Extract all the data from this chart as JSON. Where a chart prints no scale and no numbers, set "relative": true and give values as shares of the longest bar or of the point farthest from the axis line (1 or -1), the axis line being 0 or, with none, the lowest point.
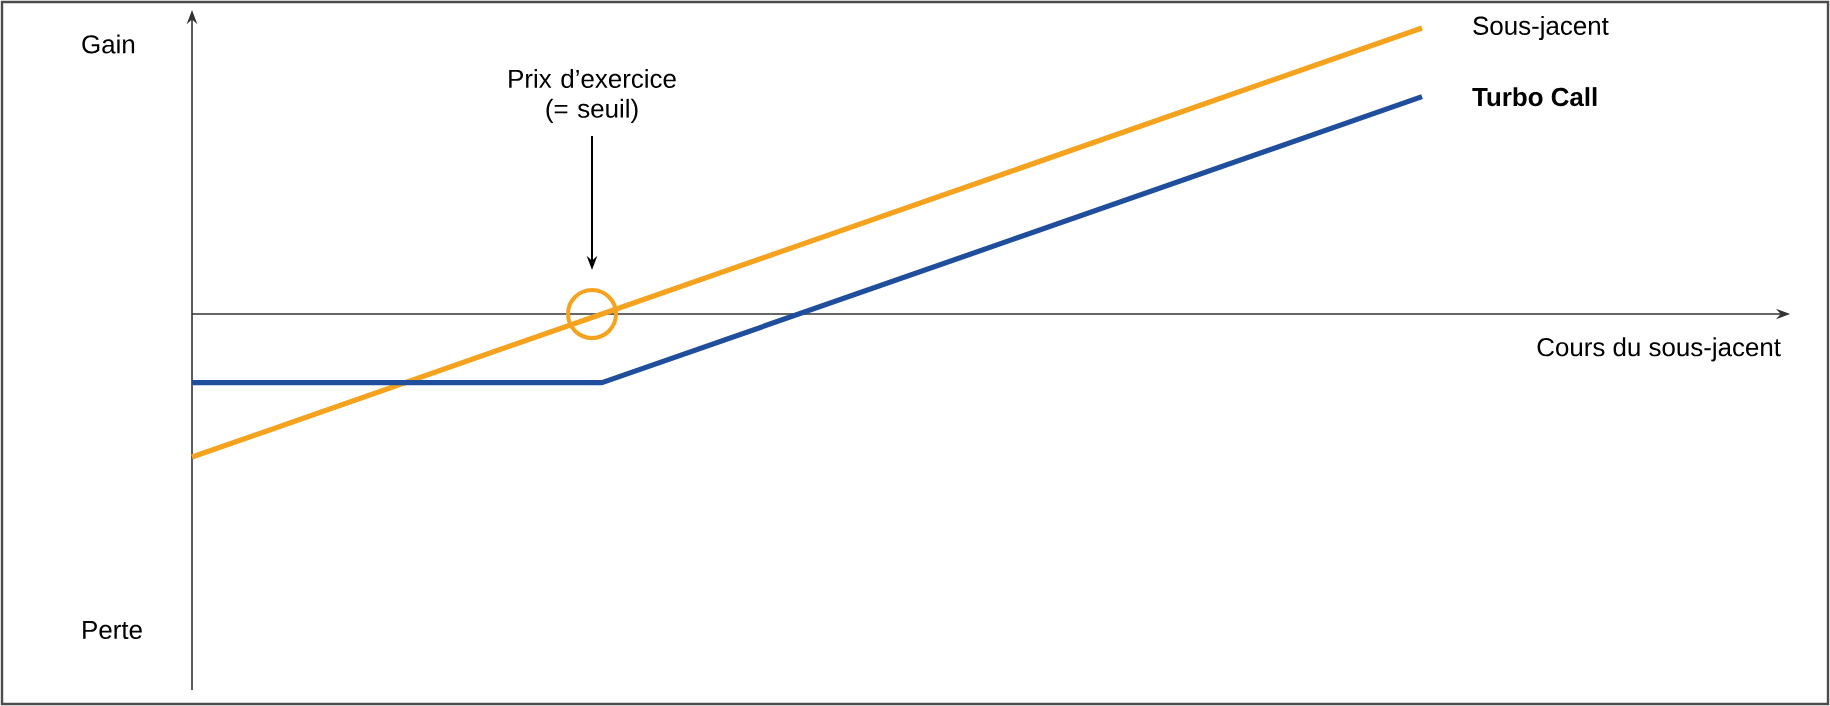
{
  "chart_data": {
    "type": "line",
    "relative": true,
    "xlabel": "Cours du sous-jacent",
    "categories": [
      null,
      null,
      null,
      null
    ],
    "series": [
      {
        "name": "Sous-jacent",
        "color": "#f5a31f",
        "values": [
          -0.5,
          0,
          0.5,
          1
        ]
      },
      {
        "name": "Turbo Call",
        "color": "#1f4e9c",
        "values": [
          -0.24,
          -0.24,
          0.26,
          0.76
        ]
      }
    ],
    "annotations": [
      "Gain",
      "Perte",
      "Prix d’exercice (= seuil)"
    ]
  }
}
